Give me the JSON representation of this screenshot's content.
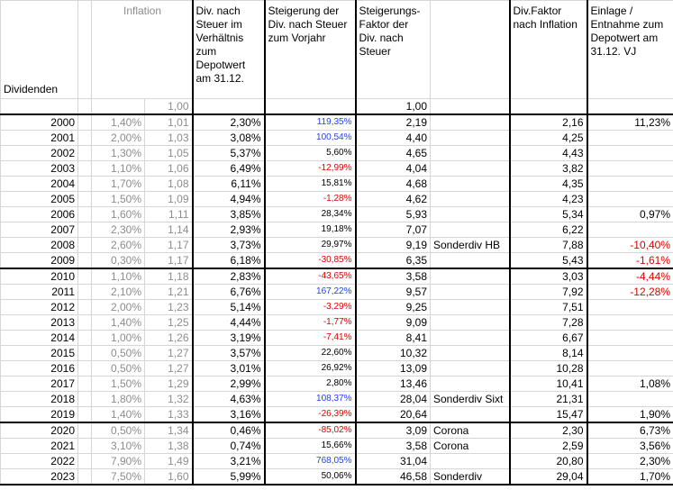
{
  "headers": {
    "dividenden": "Dividenden",
    "inflation": "Inflation",
    "div_steuer": "Div. nach Steuer im Verhältnis zum Depotwert am 31.12.",
    "steigerung": "Steigerung der Div. nach Steuer zum Vorjahr",
    "faktor": "Steigerungs-Faktor der Div. nach Steuer",
    "div_faktor": "Div.Faktor nach Inflation",
    "einlage": "Einlage / Entnahme zum Depotwert am 31.12. VJ"
  },
  "base_row": {
    "infl_factor": "1,00",
    "faktor": "1,00"
  },
  "rows": [
    {
      "year": "2000",
      "infl": "1,40%",
      "ifac": "1,01",
      "div": "2,30%",
      "steig": "119,35%",
      "steig_color": "blue",
      "fak": "2,19",
      "note": "",
      "dfak": "2,16",
      "ein": "11,23%",
      "ein_color": "black"
    },
    {
      "year": "2001",
      "infl": "2,00%",
      "ifac": "1,03",
      "div": "3,08%",
      "steig": "100,54%",
      "steig_color": "blue",
      "fak": "4,40",
      "note": "",
      "dfak": "4,25",
      "ein": "",
      "ein_color": "black"
    },
    {
      "year": "2002",
      "infl": "1,30%",
      "ifac": "1,05",
      "div": "5,37%",
      "steig": "5,60%",
      "steig_color": "black",
      "fak": "4,65",
      "note": "",
      "dfak": "4,43",
      "ein": "",
      "ein_color": "black"
    },
    {
      "year": "2003",
      "infl": "1,10%",
      "ifac": "1,06",
      "div": "6,49%",
      "steig": "-12,99%",
      "steig_color": "red",
      "fak": "4,04",
      "note": "",
      "dfak": "3,82",
      "ein": "",
      "ein_color": "black"
    },
    {
      "year": "2004",
      "infl": "1,70%",
      "ifac": "1,08",
      "div": "6,11%",
      "steig": "15,81%",
      "steig_color": "black",
      "fak": "4,68",
      "note": "",
      "dfak": "4,35",
      "ein": "",
      "ein_color": "black"
    },
    {
      "year": "2005",
      "infl": "1,50%",
      "ifac": "1,09",
      "div": "4,94%",
      "steig": "-1,28%",
      "steig_color": "red",
      "fak": "4,62",
      "note": "",
      "dfak": "4,23",
      "ein": "",
      "ein_color": "black"
    },
    {
      "year": "2006",
      "infl": "1,60%",
      "ifac": "1,11",
      "div": "3,85%",
      "steig": "28,34%",
      "steig_color": "black",
      "fak": "5,93",
      "note": "",
      "dfak": "5,34",
      "ein": "0,97%",
      "ein_color": "black"
    },
    {
      "year": "2007",
      "infl": "2,30%",
      "ifac": "1,14",
      "div": "2,93%",
      "steig": "19,18%",
      "steig_color": "black",
      "fak": "7,07",
      "note": "",
      "dfak": "6,22",
      "ein": "",
      "ein_color": "black"
    },
    {
      "year": "2008",
      "infl": "2,60%",
      "ifac": "1,17",
      "div": "3,73%",
      "steig": "29,97%",
      "steig_color": "black",
      "fak": "9,19",
      "note": "Sonderdiv HB",
      "dfak": "7,88",
      "ein": "-10,40%",
      "ein_color": "red"
    },
    {
      "year": "2009",
      "infl": "0,30%",
      "ifac": "1,17",
      "div": "6,18%",
      "steig": "-30,85%",
      "steig_color": "red",
      "fak": "6,35",
      "note": "",
      "dfak": "5,43",
      "ein": "-1,61%",
      "ein_color": "red"
    },
    {
      "year": "2010",
      "infl": "1,10%",
      "ifac": "1,18",
      "div": "2,83%",
      "steig": "-43,65%",
      "steig_color": "red",
      "fak": "3,58",
      "note": "",
      "dfak": "3,03",
      "ein": "-4,44%",
      "ein_color": "red"
    },
    {
      "year": "2011",
      "infl": "2,10%",
      "ifac": "1,21",
      "div": "6,76%",
      "steig": "167,22%",
      "steig_color": "blue",
      "fak": "9,57",
      "note": "",
      "dfak": "7,92",
      "ein": "-12,28%",
      "ein_color": "red"
    },
    {
      "year": "2012",
      "infl": "2,00%",
      "ifac": "1,23",
      "div": "5,14%",
      "steig": "-3,29%",
      "steig_color": "red",
      "fak": "9,25",
      "note": "",
      "dfak": "7,51",
      "ein": "",
      "ein_color": "black"
    },
    {
      "year": "2013",
      "infl": "1,40%",
      "ifac": "1,25",
      "div": "4,44%",
      "steig": "-1,77%",
      "steig_color": "red",
      "fak": "9,09",
      "note": "",
      "dfak": "7,28",
      "ein": "",
      "ein_color": "black"
    },
    {
      "year": "2014",
      "infl": "1,00%",
      "ifac": "1,26",
      "div": "3,19%",
      "steig": "-7,41%",
      "steig_color": "red",
      "fak": "8,41",
      "note": "",
      "dfak": "6,67",
      "ein": "",
      "ein_color": "black"
    },
    {
      "year": "2015",
      "infl": "0,50%",
      "ifac": "1,27",
      "div": "3,57%",
      "steig": "22,60%",
      "steig_color": "black",
      "fak": "10,32",
      "note": "",
      "dfak": "8,14",
      "ein": "",
      "ein_color": "black"
    },
    {
      "year": "2016",
      "infl": "0,50%",
      "ifac": "1,27",
      "div": "3,01%",
      "steig": "26,92%",
      "steig_color": "black",
      "fak": "13,09",
      "note": "",
      "dfak": "10,28",
      "ein": "",
      "ein_color": "black"
    },
    {
      "year": "2017",
      "infl": "1,50%",
      "ifac": "1,29",
      "div": "2,99%",
      "steig": "2,80%",
      "steig_color": "black",
      "fak": "13,46",
      "note": "",
      "dfak": "10,41",
      "ein": "1,08%",
      "ein_color": "black"
    },
    {
      "year": "2018",
      "infl": "1,80%",
      "ifac": "1,32",
      "div": "4,63%",
      "steig": "108,37%",
      "steig_color": "blue",
      "fak": "28,04",
      "note": "Sonderdiv Sixt",
      "dfak": "21,31",
      "ein": "",
      "ein_color": "black"
    },
    {
      "year": "2019",
      "infl": "1,40%",
      "ifac": "1,33",
      "div": "3,16%",
      "steig": "-26,39%",
      "steig_color": "red",
      "fak": "20,64",
      "note": "",
      "dfak": "15,47",
      "ein": "1,90%",
      "ein_color": "black"
    },
    {
      "year": "2020",
      "infl": "0,50%",
      "ifac": "1,34",
      "div": "0,46%",
      "steig": "-85,02%",
      "steig_color": "red",
      "fak": "3,09",
      "note": "Corona",
      "dfak": "2,30",
      "ein": "6,73%",
      "ein_color": "black"
    },
    {
      "year": "2021",
      "infl": "3,10%",
      "ifac": "1,38",
      "div": "0,74%",
      "steig": "15,66%",
      "steig_color": "black",
      "fak": "3,58",
      "note": "Corona",
      "dfak": "2,59",
      "ein": "3,56%",
      "ein_color": "black"
    },
    {
      "year": "2022",
      "infl": "7,90%",
      "ifac": "1,49",
      "div": "3,21%",
      "steig": "768,05%",
      "steig_color": "blue",
      "fak": "31,04",
      "note": "",
      "dfak": "20,80",
      "ein": "2,30%",
      "ein_color": "black"
    },
    {
      "year": "2023",
      "infl": "7,50%",
      "ifac": "1,60",
      "div": "5,99%",
      "steig": "50,06%",
      "steig_color": "black",
      "fak": "46,58",
      "note": "Sonderdiv",
      "dfak": "29,04",
      "ein": "1,70%",
      "ein_color": "black"
    }
  ]
}
